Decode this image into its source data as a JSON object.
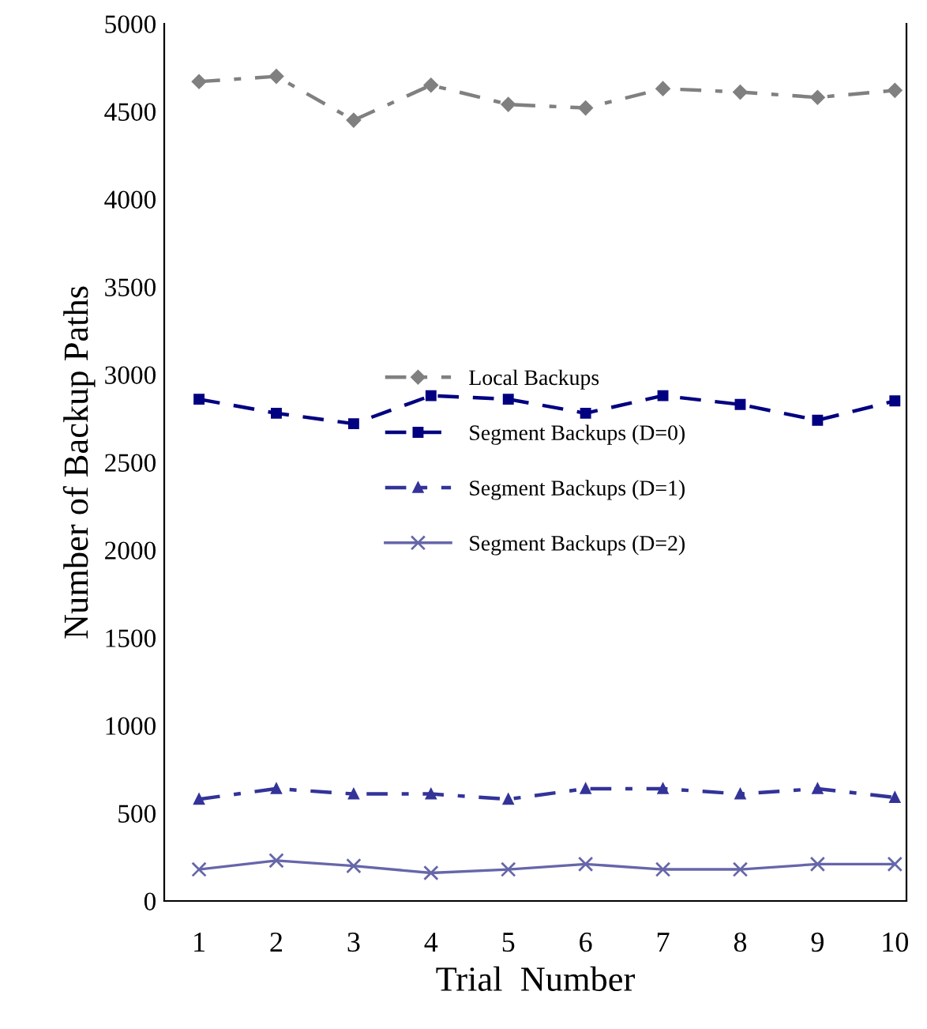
{
  "chart_data": {
    "type": "line",
    "xlabel": "Trial  Number",
    "ylabel": "Number of Backup Paths",
    "categories": [
      "1",
      "2",
      "3",
      "4",
      "5",
      "6",
      "7",
      "8",
      "9",
      "10"
    ],
    "series": [
      {
        "name": "Local Backups",
        "color": "#808080",
        "marker": "diamond",
        "line_style": "dashdot",
        "values": [
          4670,
          4700,
          4450,
          4650,
          4540,
          4520,
          4630,
          4610,
          4580,
          4620
        ]
      },
      {
        "name": "Segment Backups (D=0)",
        "color": "#000080",
        "marker": "square",
        "line_style": "dashed",
        "values": [
          2860,
          2780,
          2720,
          2880,
          2860,
          2780,
          2880,
          2830,
          2740,
          2850
        ]
      },
      {
        "name": "Segment Backups (D=1)",
        "color": "#333399",
        "marker": "triangle",
        "line_style": "dashdot",
        "values": [
          580,
          640,
          610,
          610,
          580,
          640,
          640,
          610,
          640,
          590
        ]
      },
      {
        "name": "Segment Backups (D=2)",
        "color": "#6666aa",
        "marker": "cross",
        "line_style": "solid",
        "values": [
          180,
          230,
          200,
          160,
          180,
          210,
          180,
          180,
          210,
          210
        ]
      }
    ],
    "ylim": [
      0,
      5000
    ],
    "yticks": [
      0,
      500,
      1000,
      1500,
      2000,
      2500,
      3000,
      3500,
      4000,
      4500,
      5000
    ],
    "grid": false,
    "legend": "center"
  }
}
